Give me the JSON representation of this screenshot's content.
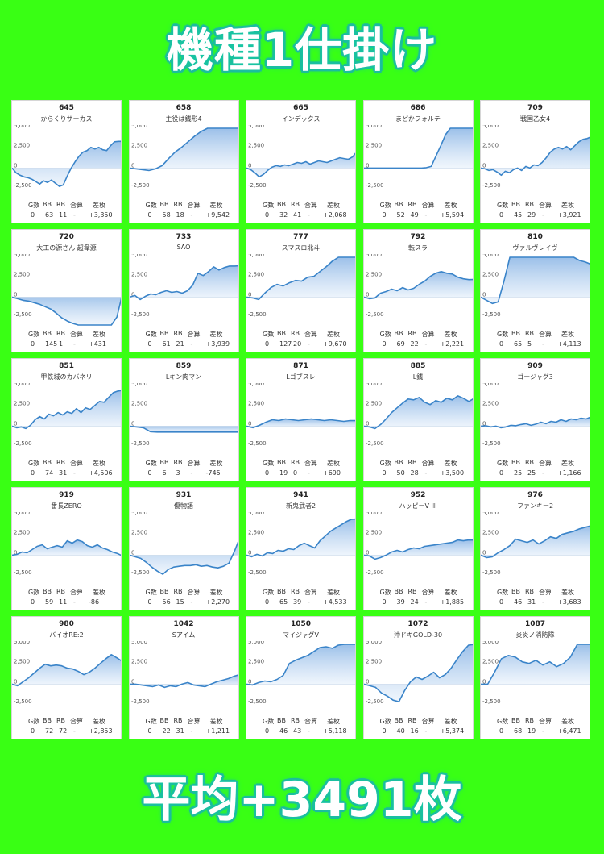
{
  "page": {
    "title": "機種1仕掛け",
    "footer": "平均+3491枚",
    "accent": "#39ff14",
    "glow": "#1eb89c",
    "line_color": "#3a84c9"
  },
  "columns": [
    "G数",
    "BB",
    "RB",
    "合算",
    "差枚"
  ],
  "y_ticks": [
    "5,000",
    "2,500",
    "0",
    "-2,500"
  ],
  "chart_data": [
    {
      "type": "area",
      "number": "645",
      "name": "からくりサーカス",
      "g": "0",
      "bb": "63",
      "rb": "11",
      "total": "-",
      "diff": "+3,350",
      "y": [
        0,
        -600,
        -900,
        -1100,
        -1200,
        -1400,
        -1700,
        -2000,
        -1600,
        -1800,
        -1500,
        -1900,
        -2300,
        -2100,
        -1000,
        0,
        800,
        1500,
        2000,
        2200,
        2600,
        2400,
        2600,
        2300,
        2200,
        2800,
        3300,
        3350,
        3350
      ]
    },
    {
      "type": "area",
      "number": "658",
      "name": "主役は銭形4",
      "g": "0",
      "bb": "58",
      "rb": "18",
      "total": "-",
      "diff": "+9,542",
      "y": [
        0,
        -100,
        -200,
        -300,
        -100,
        300,
        1200,
        2000,
        2600,
        3300,
        4000,
        4600,
        5200,
        6000,
        7000,
        8000,
        8800,
        9542
      ]
    },
    {
      "type": "area",
      "number": "665",
      "name": "インデックス",
      "g": "0",
      "bb": "32",
      "rb": "41",
      "total": "-",
      "diff": "+2,068",
      "y": [
        0,
        -200,
        -600,
        -1100,
        -800,
        -300,
        100,
        300,
        200,
        400,
        300,
        500,
        700,
        600,
        800,
        500,
        700,
        900,
        800,
        700,
        900,
        1100,
        1300,
        1200,
        1100,
        1400,
        2068
      ]
    },
    {
      "type": "area",
      "number": "686",
      "name": "まどかフォルテ",
      "g": "0",
      "bb": "52",
      "rb": "49",
      "total": "-",
      "diff": "+5,594",
      "y": [
        0,
        0,
        0,
        0,
        0,
        0,
        0,
        0,
        0,
        0,
        0,
        0,
        0,
        50,
        200,
        1500,
        2800,
        4200,
        5000,
        5200,
        5000,
        5400,
        5200,
        5594
      ]
    },
    {
      "type": "area",
      "number": "709",
      "name": "戦国乙女4",
      "g": "0",
      "bb": "45",
      "rb": "29",
      "total": "-",
      "diff": "+3,921",
      "y": [
        0,
        -100,
        -300,
        -200,
        -500,
        -900,
        -400,
        -600,
        -200,
        0,
        -300,
        200,
        0,
        400,
        300,
        700,
        1300,
        2000,
        2400,
        2600,
        2400,
        2700,
        2300,
        2800,
        3300,
        3600,
        3700,
        3921
      ]
    },
    {
      "type": "area",
      "number": "720",
      "name": "大工の源さん 超韋源",
      "g": "0",
      "bb": "145",
      "rb": "1",
      "total": "-",
      "diff": "+431",
      "y": [
        0,
        -200,
        -400,
        -500,
        -700,
        -900,
        -1200,
        -1500,
        -2000,
        -2600,
        -3000,
        -3300,
        -3700,
        -4000,
        -4400,
        -4800,
        -5300,
        -5600,
        -6000,
        -2500,
        431
      ]
    },
    {
      "type": "area",
      "number": "733",
      "name": "SAO",
      "g": "0",
      "bb": "61",
      "rb": "21",
      "total": "-",
      "diff": "+3,939",
      "y": [
        0,
        200,
        -300,
        100,
        400,
        300,
        600,
        800,
        600,
        700,
        500,
        800,
        1500,
        3000,
        2700,
        3200,
        3800,
        3400,
        3700,
        3900,
        3900,
        3939
      ]
    },
    {
      "type": "area",
      "number": "777",
      "name": "スマスロ北斗",
      "g": "0",
      "bb": "127",
      "rb": "20",
      "total": "-",
      "diff": "+9,670",
      "y": [
        0,
        -100,
        -300,
        500,
        1200,
        1600,
        1400,
        1800,
        2100,
        2000,
        2500,
        2600,
        3200,
        3800,
        4500,
        6000,
        7500,
        9000,
        9670
      ]
    },
    {
      "type": "area",
      "number": "792",
      "name": "転スラ",
      "g": "0",
      "bb": "69",
      "rb": "22",
      "total": "-",
      "diff": "+2,221",
      "y": [
        0,
        -200,
        -100,
        500,
        700,
        1000,
        800,
        1200,
        900,
        1100,
        1600,
        2000,
        2600,
        3000,
        3200,
        3000,
        2900,
        2500,
        2300,
        2200,
        2221
      ]
    },
    {
      "type": "area",
      "number": "810",
      "name": "ヴァルヴレイヴ",
      "g": "0",
      "bb": "65",
      "rb": "5",
      "total": "-",
      "diff": "+4,113",
      "y": [
        0,
        -400,
        -800,
        -600,
        2000,
        5200,
        5200,
        5200,
        5200,
        5200,
        5200,
        5200,
        5200,
        5200,
        5200,
        5200,
        5000,
        4600,
        4400,
        4113
      ]
    },
    {
      "type": "area",
      "number": "851",
      "name": "甲鉄城のカバネリ",
      "g": "0",
      "bb": "74",
      "rb": "31",
      "total": "-",
      "diff": "+4,506",
      "y": [
        0,
        -200,
        -100,
        -300,
        100,
        800,
        1200,
        900,
        1500,
        1300,
        1700,
        1400,
        1800,
        1600,
        2200,
        1700,
        2300,
        2100,
        2600,
        3100,
        3000,
        3600,
        4200,
        4400,
        4506
      ]
    },
    {
      "type": "area",
      "number": "859",
      "name": "Lキン肉マン",
      "g": "0",
      "bb": "6",
      "rb": "3",
      "total": "-",
      "diff": "-745",
      "y": [
        0,
        -100,
        -200,
        -700,
        -745,
        -745,
        -745,
        -745,
        -745,
        -745,
        -745,
        -745,
        -745,
        -745,
        -745,
        -745,
        -745
      ]
    },
    {
      "type": "area",
      "number": "871",
      "name": "Lゴブスレ",
      "g": "0",
      "bb": "19",
      "rb": "0",
      "total": "-",
      "diff": "+690",
      "y": [
        0,
        -200,
        100,
        500,
        800,
        700,
        900,
        800,
        700,
        800,
        900,
        800,
        700,
        800,
        700,
        600,
        700,
        690
      ]
    },
    {
      "type": "area",
      "number": "885",
      "name": "L銭",
      "g": "0",
      "bb": "50",
      "rb": "28",
      "total": "-",
      "diff": "+3,500",
      "y": [
        0,
        -100,
        -300,
        200,
        900,
        1700,
        2300,
        2900,
        3400,
        3300,
        3600,
        3000,
        2700,
        3200,
        3000,
        3500,
        3300,
        3800,
        3500,
        3100,
        3500
      ]
    },
    {
      "type": "area",
      "number": "909",
      "name": "ゴージャグ3",
      "g": "0",
      "bb": "25",
      "rb": "25",
      "total": "-",
      "diff": "+1,166",
      "y": [
        0,
        50,
        -100,
        0,
        -200,
        -100,
        100,
        50,
        200,
        300,
        100,
        250,
        500,
        300,
        600,
        500,
        800,
        600,
        900,
        800,
        1000,
        900,
        1166
      ]
    },
    {
      "type": "area",
      "number": "919",
      "name": "番長ZERO",
      "g": "0",
      "bb": "59",
      "rb": "11",
      "total": "-",
      "diff": "-86",
      "y": [
        0,
        100,
        400,
        300,
        700,
        1100,
        1300,
        800,
        1000,
        1200,
        1000,
        1800,
        1500,
        1900,
        1700,
        1200,
        1000,
        1300,
        900,
        700,
        400,
        200,
        -86
      ]
    },
    {
      "type": "area",
      "number": "931",
      "name": "傷物語",
      "g": "0",
      "bb": "56",
      "rb": "15",
      "total": "-",
      "diff": "+2,270",
      "y": [
        0,
        -200,
        -400,
        -900,
        -1500,
        -2000,
        -2400,
        -1800,
        -1500,
        -1400,
        -1300,
        -1300,
        -1200,
        -1400,
        -1300,
        -1500,
        -1600,
        -1400,
        -1000,
        500,
        2270
      ]
    },
    {
      "type": "area",
      "number": "941",
      "name": "新鬼武者2",
      "g": "0",
      "bb": "65",
      "rb": "39",
      "total": "-",
      "diff": "+4,533",
      "y": [
        0,
        -200,
        100,
        -100,
        300,
        200,
        600,
        500,
        800,
        700,
        1200,
        1500,
        1200,
        900,
        1800,
        2400,
        3000,
        3400,
        3800,
        4200,
        4500,
        4533
      ]
    },
    {
      "type": "area",
      "number": "952",
      "name": "ハッピーV III",
      "g": "0",
      "bb": "39",
      "rb": "24",
      "total": "-",
      "diff": "+1,885",
      "y": [
        0,
        -100,
        -500,
        -300,
        0,
        400,
        600,
        400,
        700,
        900,
        800,
        1100,
        1200,
        1300,
        1400,
        1500,
        1600,
        1900,
        1800,
        1900,
        1885
      ]
    },
    {
      "type": "area",
      "number": "976",
      "name": "ファンキー2",
      "g": "0",
      "bb": "46",
      "rb": "31",
      "total": "-",
      "diff": "+3,683",
      "y": [
        0,
        -300,
        -200,
        300,
        700,
        1200,
        2000,
        1800,
        1600,
        1900,
        1400,
        1800,
        2300,
        2100,
        2600,
        2800,
        3000,
        3300,
        3500,
        3683
      ]
    },
    {
      "type": "area",
      "number": "980",
      "name": "バイオRE:2",
      "g": "0",
      "bb": "72",
      "rb": "72",
      "total": "-",
      "diff": "+2,853",
      "y": [
        0,
        -200,
        300,
        800,
        1400,
        2000,
        2500,
        2300,
        2400,
        2300,
        2000,
        1900,
        1600,
        1200,
        1500,
        2000,
        2600,
        3200,
        3700,
        3300,
        2853
      ]
    },
    {
      "type": "area",
      "number": "1042",
      "name": "Sアイム",
      "g": "0",
      "bb": "22",
      "rb": "31",
      "total": "-",
      "diff": "+1,211",
      "y": [
        0,
        0,
        -100,
        -200,
        -300,
        -100,
        -400,
        -200,
        -300,
        0,
        200,
        -100,
        -200,
        -300,
        0,
        300,
        500,
        700,
        1000,
        1211
      ]
    },
    {
      "type": "area",
      "number": "1050",
      "name": "マイジャグV",
      "g": "0",
      "bb": "46",
      "rb": "43",
      "total": "-",
      "diff": "+5,118",
      "y": [
        0,
        -100,
        200,
        400,
        300,
        600,
        1100,
        2600,
        3000,
        3300,
        3600,
        4100,
        4600,
        4700,
        4500,
        4900,
        5300,
        5100,
        5118
      ]
    },
    {
      "type": "area",
      "number": "1072",
      "name": "沖ドキGOLD-30",
      "g": "0",
      "bb": "40",
      "rb": "16",
      "total": "-",
      "diff": "+5,374",
      "y": [
        0,
        -200,
        -400,
        -1100,
        -1500,
        -2000,
        -2200,
        -800,
        300,
        900,
        600,
        1000,
        1500,
        800,
        1200,
        2000,
        3100,
        4100,
        4900,
        5374
      ]
    },
    {
      "type": "area",
      "number": "1087",
      "name": "炎炎ノ消防隊",
      "g": "0",
      "bb": "68",
      "rb": "19",
      "total": "-",
      "diff": "+6,471",
      "y": [
        0,
        0,
        1500,
        3200,
        3600,
        3400,
        2800,
        2600,
        3000,
        2400,
        2800,
        2200,
        2600,
        3400,
        5000,
        6471,
        6471
      ]
    }
  ]
}
